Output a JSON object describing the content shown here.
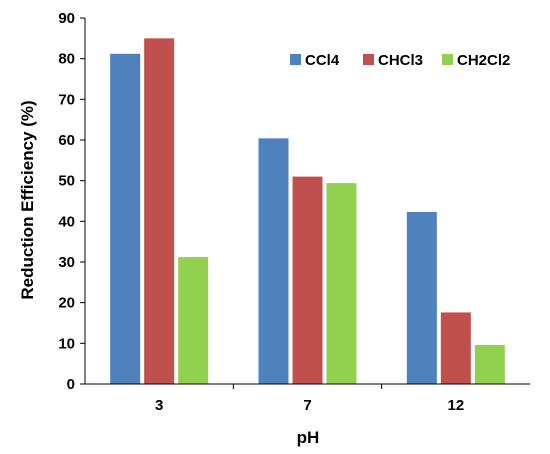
{
  "chart_data": {
    "type": "bar",
    "title": "",
    "xlabel": "pH",
    "ylabel": "Reduction Efficiency  (%)",
    "categories": [
      "3",
      "7",
      "12"
    ],
    "ylim": [
      0,
      90
    ],
    "yticks": [
      0,
      10,
      20,
      30,
      40,
      50,
      60,
      70,
      80,
      90
    ],
    "grid": false,
    "legend_position": "top-right",
    "series": [
      {
        "name": "CCl4",
        "color": "#4f81bd",
        "values": [
          81.2,
          60.4,
          42.3
        ]
      },
      {
        "name": "CHCl3",
        "color": "#c0504d",
        "values": [
          85.0,
          51.0,
          17.6
        ]
      },
      {
        "name": "CH2Cl2",
        "color": "#92d050",
        "values": [
          31.2,
          49.4,
          9.6
        ]
      }
    ]
  }
}
